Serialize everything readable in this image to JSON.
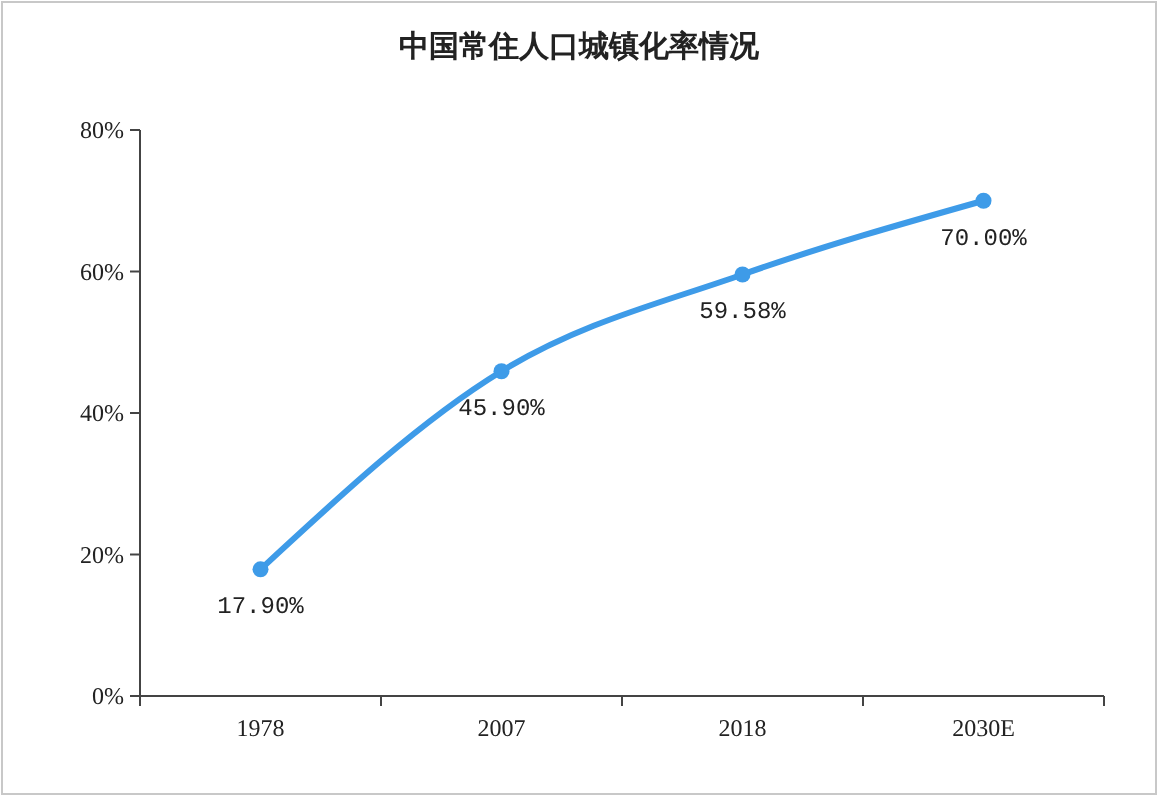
{
  "chart_data": {
    "type": "line",
    "title": "中国常住人口城镇化率情况",
    "categories": [
      "1978",
      "2007",
      "2018",
      "2030E"
    ],
    "series": [
      {
        "color": "#3e9be8",
        "values": [
          17.9,
          45.9,
          59.58,
          70.0
        ],
        "value_labels": [
          "17.90%",
          "45.90%",
          "59.58%",
          "70.00%"
        ]
      }
    ],
    "ylim": [
      0,
      80
    ],
    "yticks": [
      {
        "value": 0,
        "label": "0%"
      },
      {
        "value": 20,
        "label": "20%"
      },
      {
        "value": 40,
        "label": "40%"
      },
      {
        "value": 60,
        "label": "60%"
      },
      {
        "value": 80,
        "label": "80%"
      }
    ],
    "grid": false,
    "marker": "circle",
    "line_style": "solid"
  }
}
